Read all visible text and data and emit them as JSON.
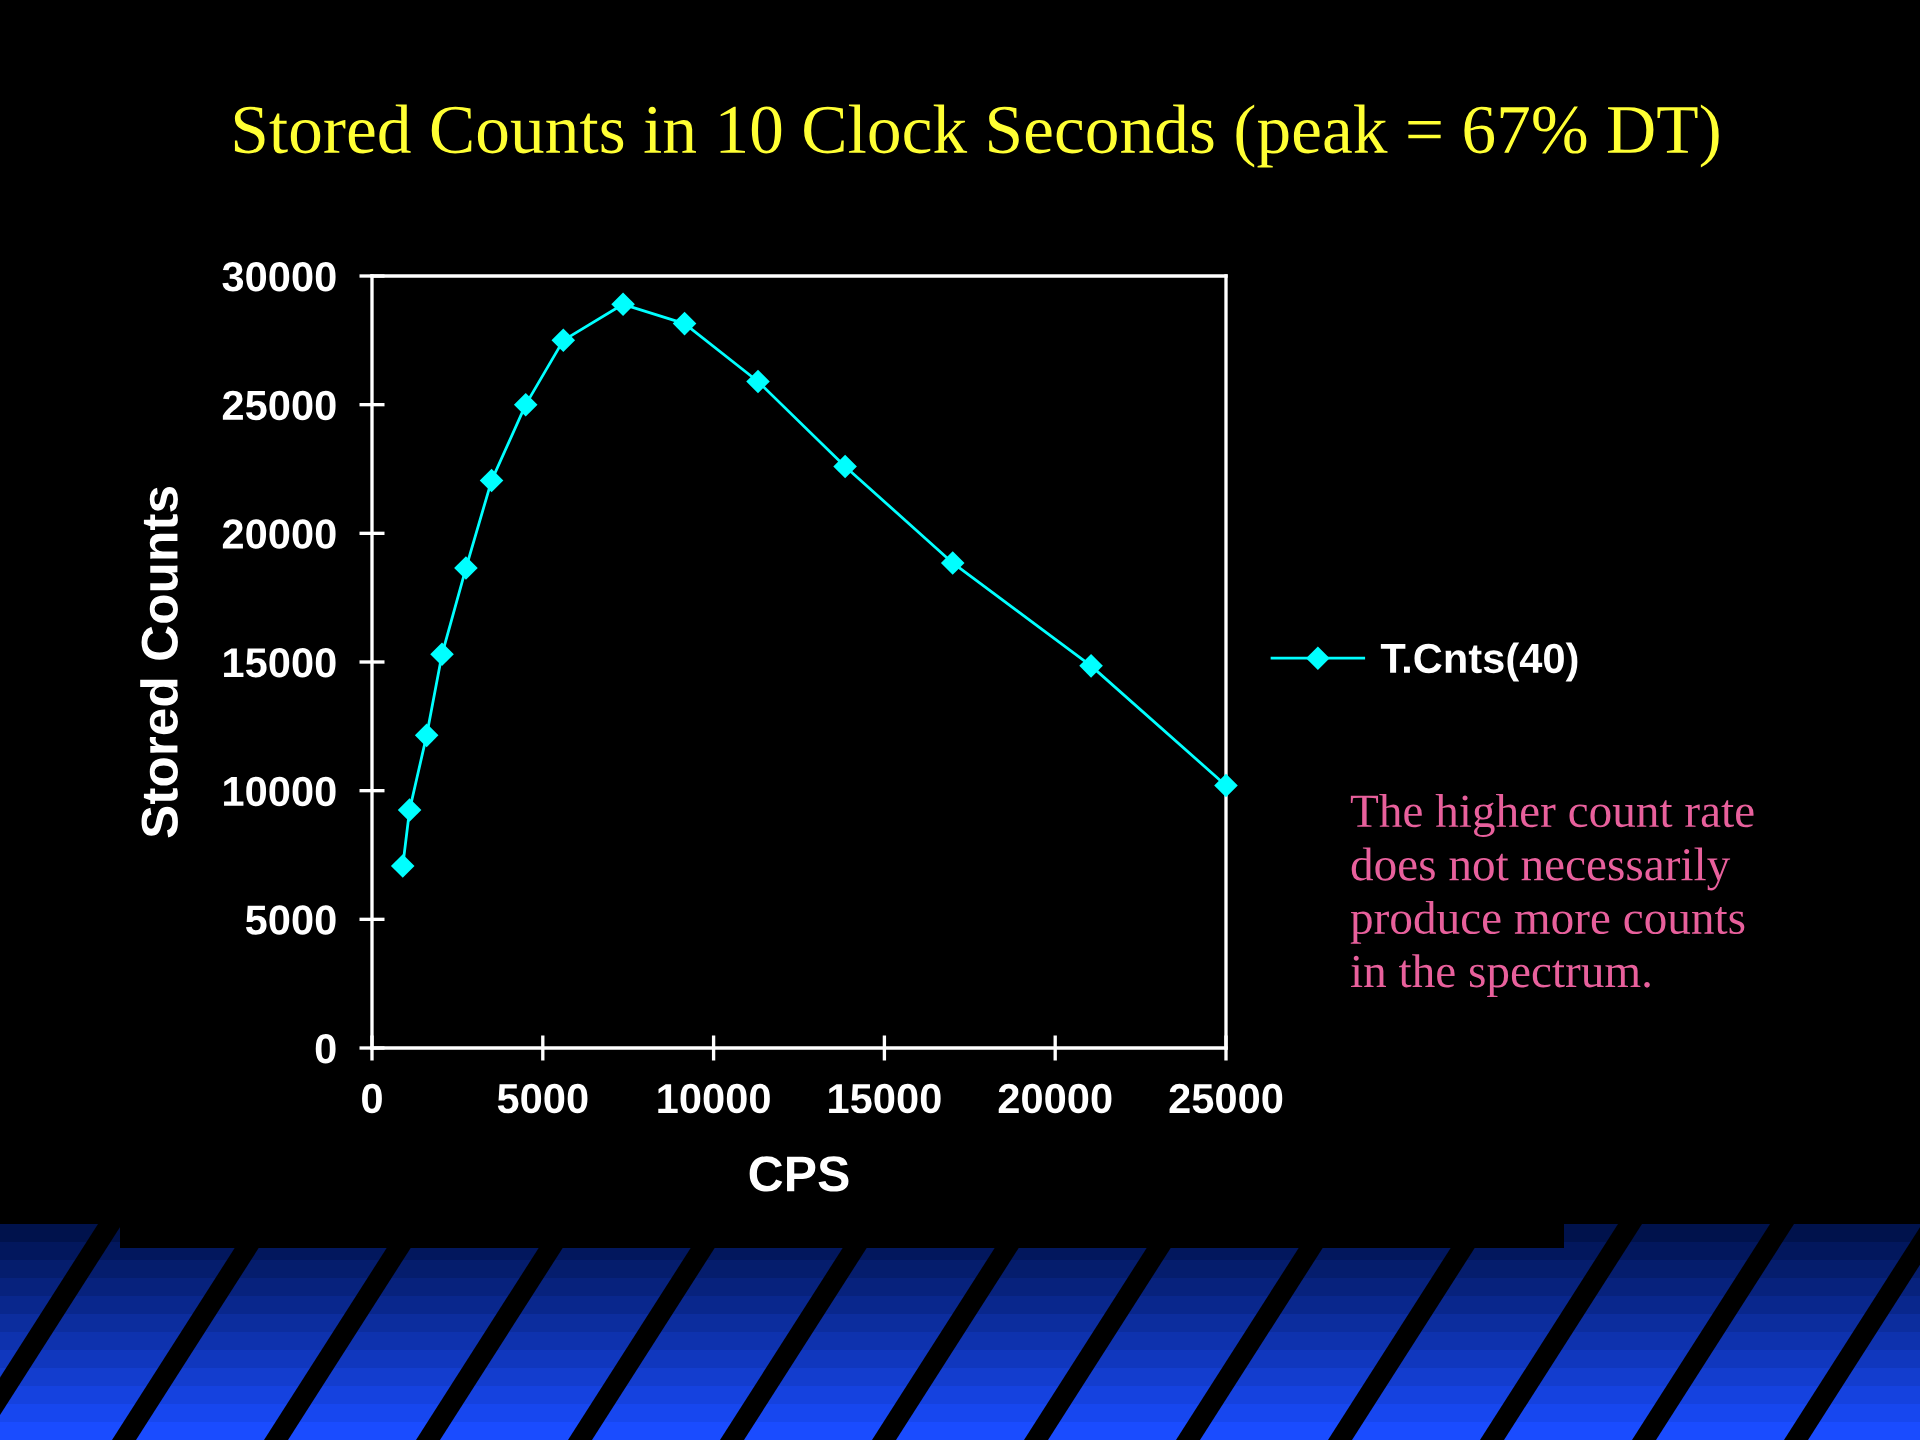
{
  "chart_data": {
    "type": "line",
    "title": "Stored Counts in 10 Clock Seconds (peak = 67% DT)",
    "xlabel": "CPS",
    "ylabel": "Stored Counts",
    "x": [
      900,
      1100,
      1600,
      2050,
      2750,
      3500,
      4500,
      5600,
      7350,
      9150,
      11300,
      13850,
      17000,
      21050,
      25000
    ],
    "series": [
      {
        "name": "T.Cnts(40)",
        "color": "#00ffff",
        "values": [
          7070,
          9250,
          12150,
          15300,
          18650,
          22050,
          25000,
          27500,
          28900,
          28150,
          25900,
          22600,
          18850,
          14850,
          10200
        ]
      }
    ],
    "xlim": [
      0,
      25000
    ],
    "xticks": [
      0,
      5000,
      10000,
      15000,
      20000,
      25000
    ],
    "ylim": [
      0,
      30000
    ],
    "yticks": [
      0,
      5000,
      10000,
      15000,
      20000,
      25000,
      30000
    ],
    "grid": false,
    "legend": "right",
    "marker": "diamond",
    "line_style": "solid",
    "annotations": [
      "The higher count rate\ndoes not necessarily\nproduce more counts\nin the spectrum."
    ]
  }
}
